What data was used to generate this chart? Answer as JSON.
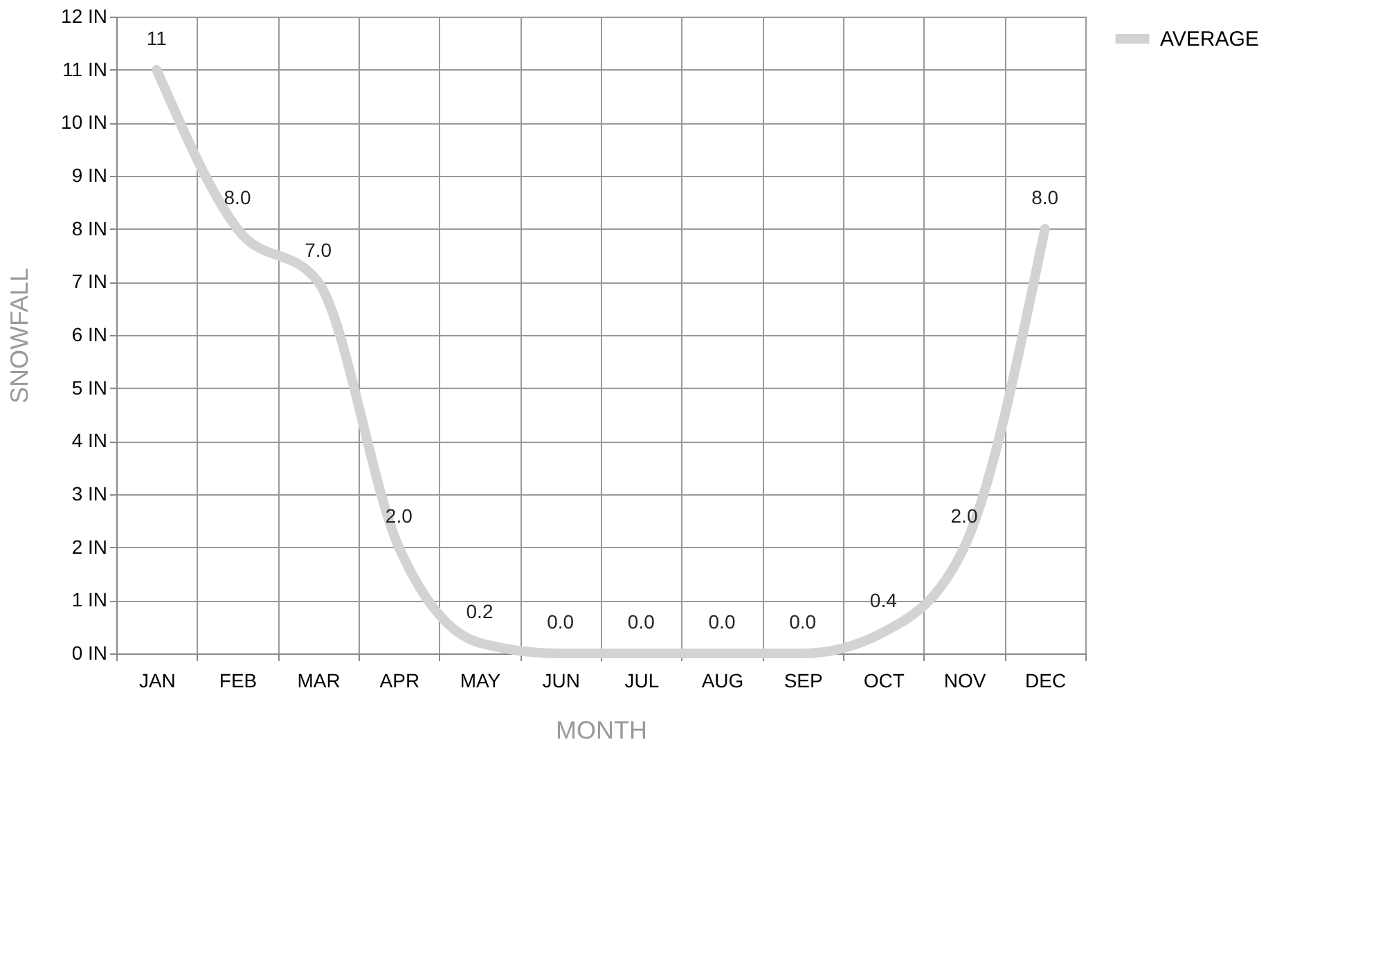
{
  "chart_data": {
    "type": "line",
    "xlabel": "MONTH",
    "ylabel": "SNOWFALL",
    "categories": [
      "JAN",
      "FEB",
      "MAR",
      "APR",
      "MAY",
      "JUN",
      "JUL",
      "AUG",
      "SEP",
      "OCT",
      "NOV",
      "DEC"
    ],
    "series": [
      {
        "name": "AVERAGE",
        "color": "#d3d3d3",
        "values": [
          11,
          8.0,
          7.0,
          2.0,
          0.2,
          0.0,
          0.0,
          0.0,
          0.0,
          0.4,
          2.0,
          8.0
        ],
        "value_labels": [
          "11",
          "8.0",
          "7.0",
          "2.0",
          "0.2",
          "0.0",
          "0.0",
          "0.0",
          "0.0",
          "0.4",
          "2.0",
          "8.0"
        ]
      }
    ],
    "ylim": [
      0,
      12
    ],
    "yticks": [
      {
        "value": 0,
        "label": "0 IN"
      },
      {
        "value": 1,
        "label": "1 IN"
      },
      {
        "value": 2,
        "label": "2 IN"
      },
      {
        "value": 3,
        "label": "3 IN"
      },
      {
        "value": 4,
        "label": "4 IN"
      },
      {
        "value": 5,
        "label": "5 IN"
      },
      {
        "value": 6,
        "label": "6 IN"
      },
      {
        "value": 7,
        "label": "7 IN"
      },
      {
        "value": 8,
        "label": "8 IN"
      },
      {
        "value": 9,
        "label": "9 IN"
      },
      {
        "value": 10,
        "label": "10 IN"
      },
      {
        "value": 11,
        "label": "11 IN"
      },
      {
        "value": 12,
        "label": "12 IN"
      }
    ],
    "grid": true,
    "legend": "right",
    "line_style": "solid"
  }
}
